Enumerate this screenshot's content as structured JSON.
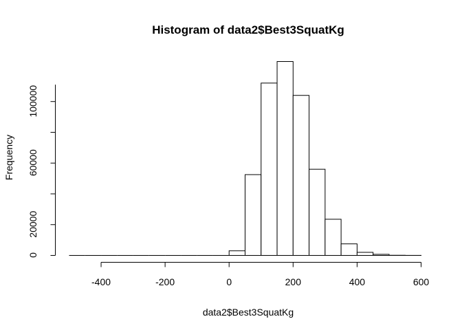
{
  "chart_data": {
    "type": "bar",
    "subtype": "histogram",
    "title": "Histogram of data2$Best3SquatKg",
    "xlabel": "data2$Best3SquatKg",
    "ylabel": "Frequency",
    "bin_width": 50,
    "bins": [
      {
        "start": -500,
        "end": -450,
        "count": 0
      },
      {
        "start": -450,
        "end": -400,
        "count": 0
      },
      {
        "start": -400,
        "end": -350,
        "count": 0
      },
      {
        "start": -350,
        "end": -300,
        "count": 0
      },
      {
        "start": -300,
        "end": -250,
        "count": 0
      },
      {
        "start": -250,
        "end": -200,
        "count": 0
      },
      {
        "start": -200,
        "end": -150,
        "count": 0
      },
      {
        "start": -150,
        "end": -100,
        "count": 0
      },
      {
        "start": -100,
        "end": -50,
        "count": 0
      },
      {
        "start": -50,
        "end": 0,
        "count": 0
      },
      {
        "start": 0,
        "end": 50,
        "count": 3000
      },
      {
        "start": 50,
        "end": 100,
        "count": 52500
      },
      {
        "start": 100,
        "end": 150,
        "count": 112000
      },
      {
        "start": 150,
        "end": 200,
        "count": 126000
      },
      {
        "start": 200,
        "end": 250,
        "count": 104000
      },
      {
        "start": 250,
        "end": 300,
        "count": 56000
      },
      {
        "start": 300,
        "end": 350,
        "count": 23500
      },
      {
        "start": 350,
        "end": 400,
        "count": 7500
      },
      {
        "start": 400,
        "end": 450,
        "count": 2000
      },
      {
        "start": 450,
        "end": 500,
        "count": 700
      },
      {
        "start": 500,
        "end": 550,
        "count": 100
      },
      {
        "start": 550,
        "end": 600,
        "count": 30
      }
    ],
    "xlim": [
      -500,
      600
    ],
    "ylim": [
      0,
      126000
    ],
    "x_ticks": [
      -400,
      -200,
      0,
      200,
      400,
      600
    ],
    "x_tick_labels": [
      "-400",
      "-200",
      "0",
      "200",
      "400",
      "600"
    ],
    "y_ticks": [
      0,
      20000,
      60000,
      100000
    ],
    "y_tick_labels": [
      "0",
      "20000",
      "60000",
      "100000"
    ],
    "grid": false,
    "legend": "none",
    "colors": {
      "bar_fill": "#ffffff",
      "bar_stroke": "#000000"
    }
  }
}
